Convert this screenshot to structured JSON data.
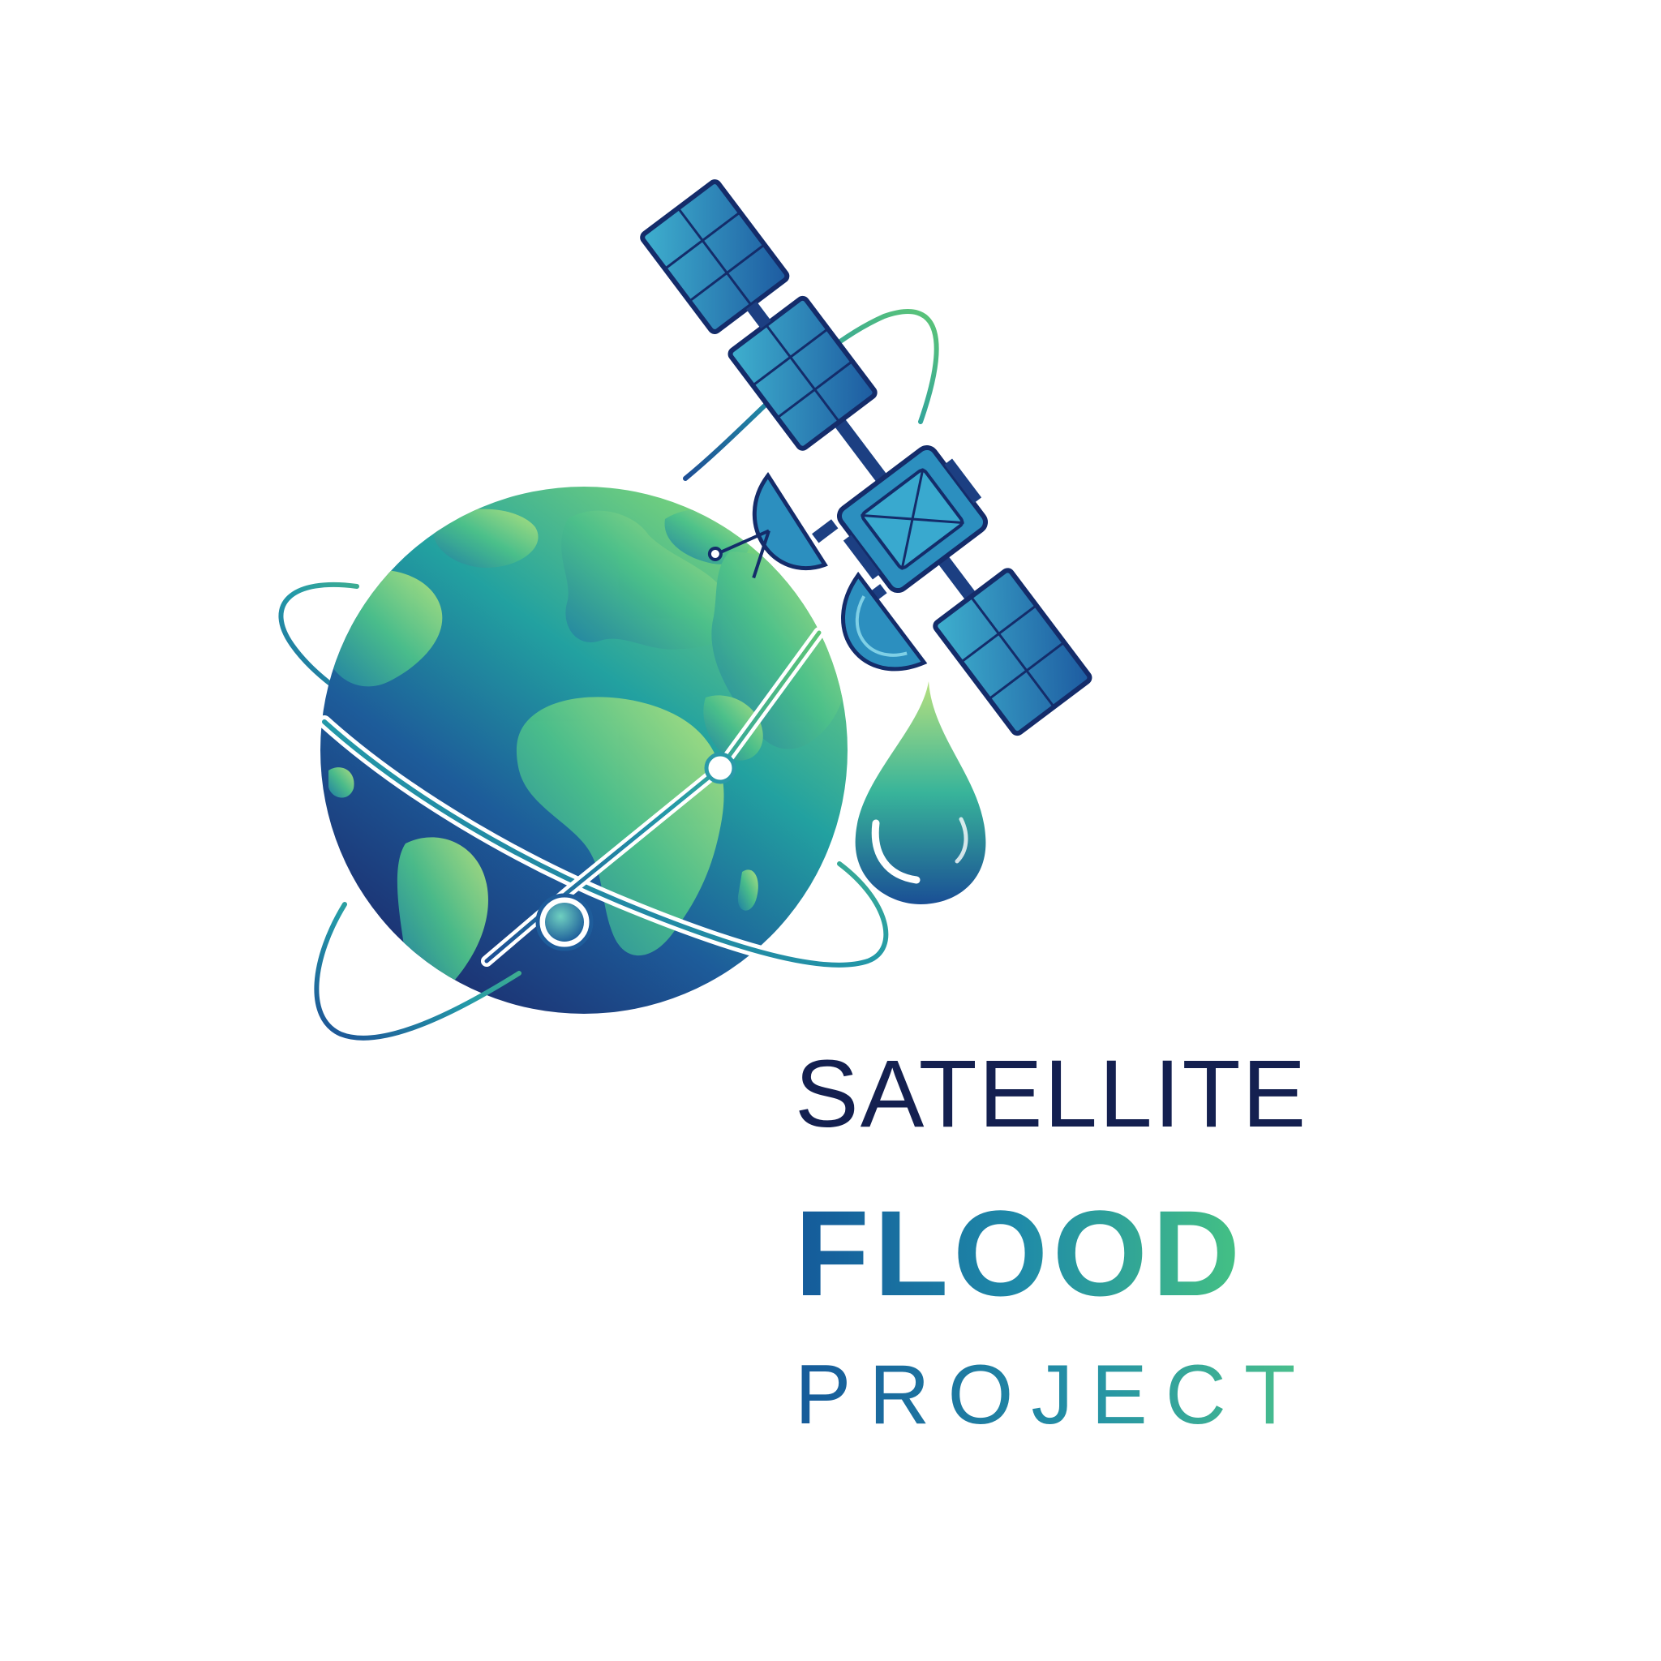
{
  "logo": {
    "title_line1": "SATELLITE",
    "title_line2": "FLOOD",
    "title_line3": "PROJECT"
  },
  "icons": {
    "globe": "globe-icon",
    "orbit": "orbit-ring-icon",
    "satellite": "satellite-icon",
    "water_drop": "water-drop-icon"
  },
  "colors": {
    "navy": "#142050",
    "deep_blue": "#1a3f8a",
    "teal": "#1f8aa8",
    "green": "#5cc576",
    "light_green": "#b6e07e"
  }
}
